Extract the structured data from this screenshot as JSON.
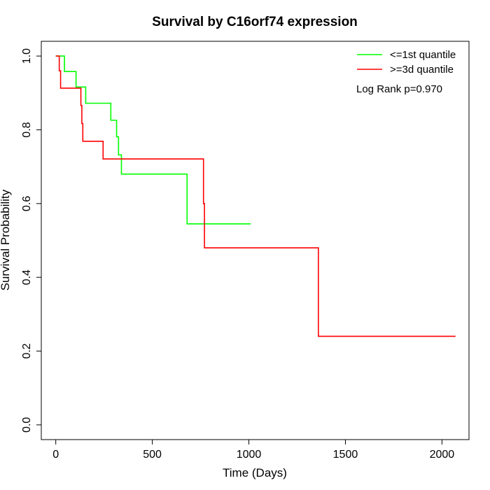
{
  "chart_data": {
    "type": "line",
    "title": "Survival by C16orf74 expression",
    "xlabel": "Time (Days)",
    "ylabel": "Survival Probability",
    "xlim": [
      -75,
      2140
    ],
    "ylim": [
      -0.04,
      1.04
    ],
    "x_ticks": [
      0,
      500,
      1000,
      1500,
      2000
    ],
    "y_ticks": [
      0.0,
      0.2,
      0.4,
      0.6,
      0.8,
      1.0
    ],
    "x_tick_labels": [
      "0",
      "500",
      "1000",
      "1500",
      "2000"
    ],
    "y_tick_labels": [
      "0.0",
      "0.2",
      "0.4",
      "0.6",
      "0.8",
      "1.0"
    ],
    "grid": false,
    "legend_position": "top-right",
    "annotation": "Log Rank p=0.970",
    "series": [
      {
        "name": "<=1st quantile",
        "color": "#00ff00",
        "x": [
          0,
          45,
          105,
          155,
          285,
          315,
          325,
          340,
          350,
          680,
          1010
        ],
        "y": [
          1.0,
          0.958,
          0.916,
          0.872,
          0.826,
          0.781,
          0.732,
          0.68,
          0.68,
          0.545,
          0.545
        ]
      },
      {
        "name": ">=3d quantile",
        "color": "#ff0000",
        "x": [
          0,
          18,
          25,
          130,
          135,
          140,
          245,
          765,
          770,
          1360,
          2070
        ],
        "y": [
          1.0,
          0.96,
          0.913,
          0.866,
          0.817,
          0.769,
          0.721,
          0.6,
          0.48,
          0.24,
          0.24
        ]
      }
    ]
  }
}
